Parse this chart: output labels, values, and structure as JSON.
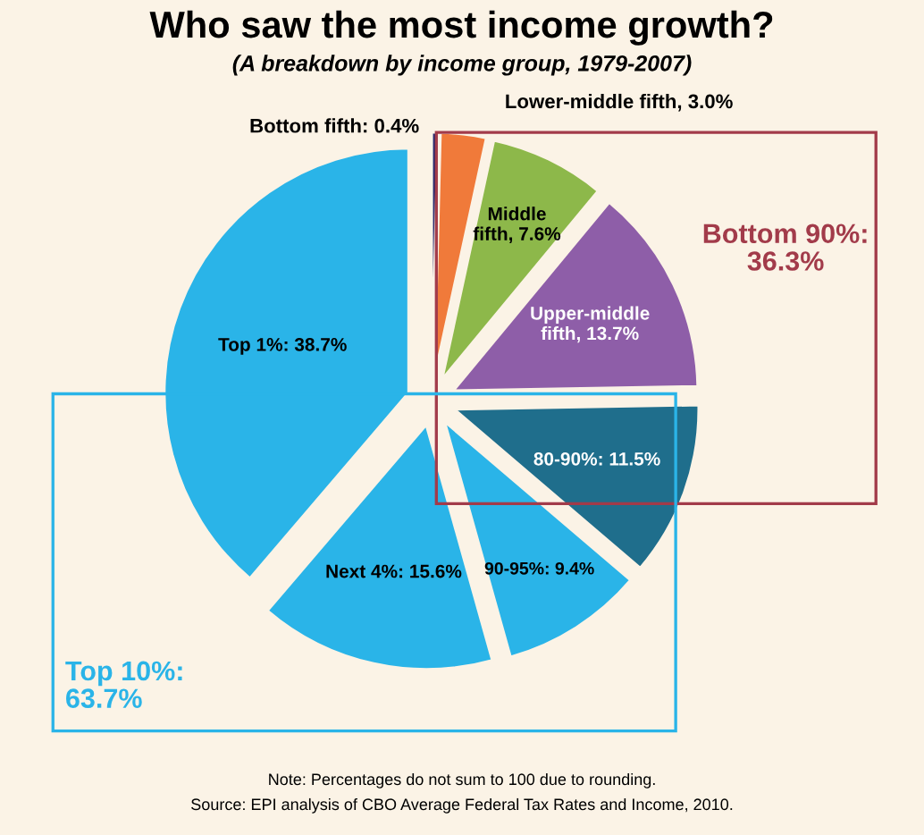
{
  "chart_data": {
    "type": "pie",
    "title": "Who saw the most income growth?",
    "subtitle": "(A breakdown by income group, 1979-2007)",
    "categories": [
      "Bottom fifth",
      "Lower-middle fifth",
      "Middle fifth",
      "Upper-middle fifth",
      "80-90%",
      "90-95%",
      "Next 4%",
      "Top 1%"
    ],
    "values": [
      0.4,
      3.0,
      7.6,
      13.7,
      11.5,
      9.4,
      15.6,
      38.7
    ],
    "value_labels": [
      "0.4%",
      "3.0%",
      "7.6%",
      "13.7%",
      "11.5%",
      "9.4%",
      "15.6%",
      "38.7%"
    ],
    "colors": [
      "#2b2a6e",
      "#f07a3a",
      "#8db84a",
      "#8e5ea8",
      "#1f6e8c",
      "#2ab4e8",
      "#2ab4e8",
      "#2ab4e8"
    ],
    "annotations": [
      "Bottom 90%: 36.3%",
      "Top 10%: 63.7%",
      "Note: Percentages do not sum to 100 due to rounding.",
      "Source: EPI analysis of CBO Average Federal Tax Rates and Income, 2010."
    ]
  }
}
